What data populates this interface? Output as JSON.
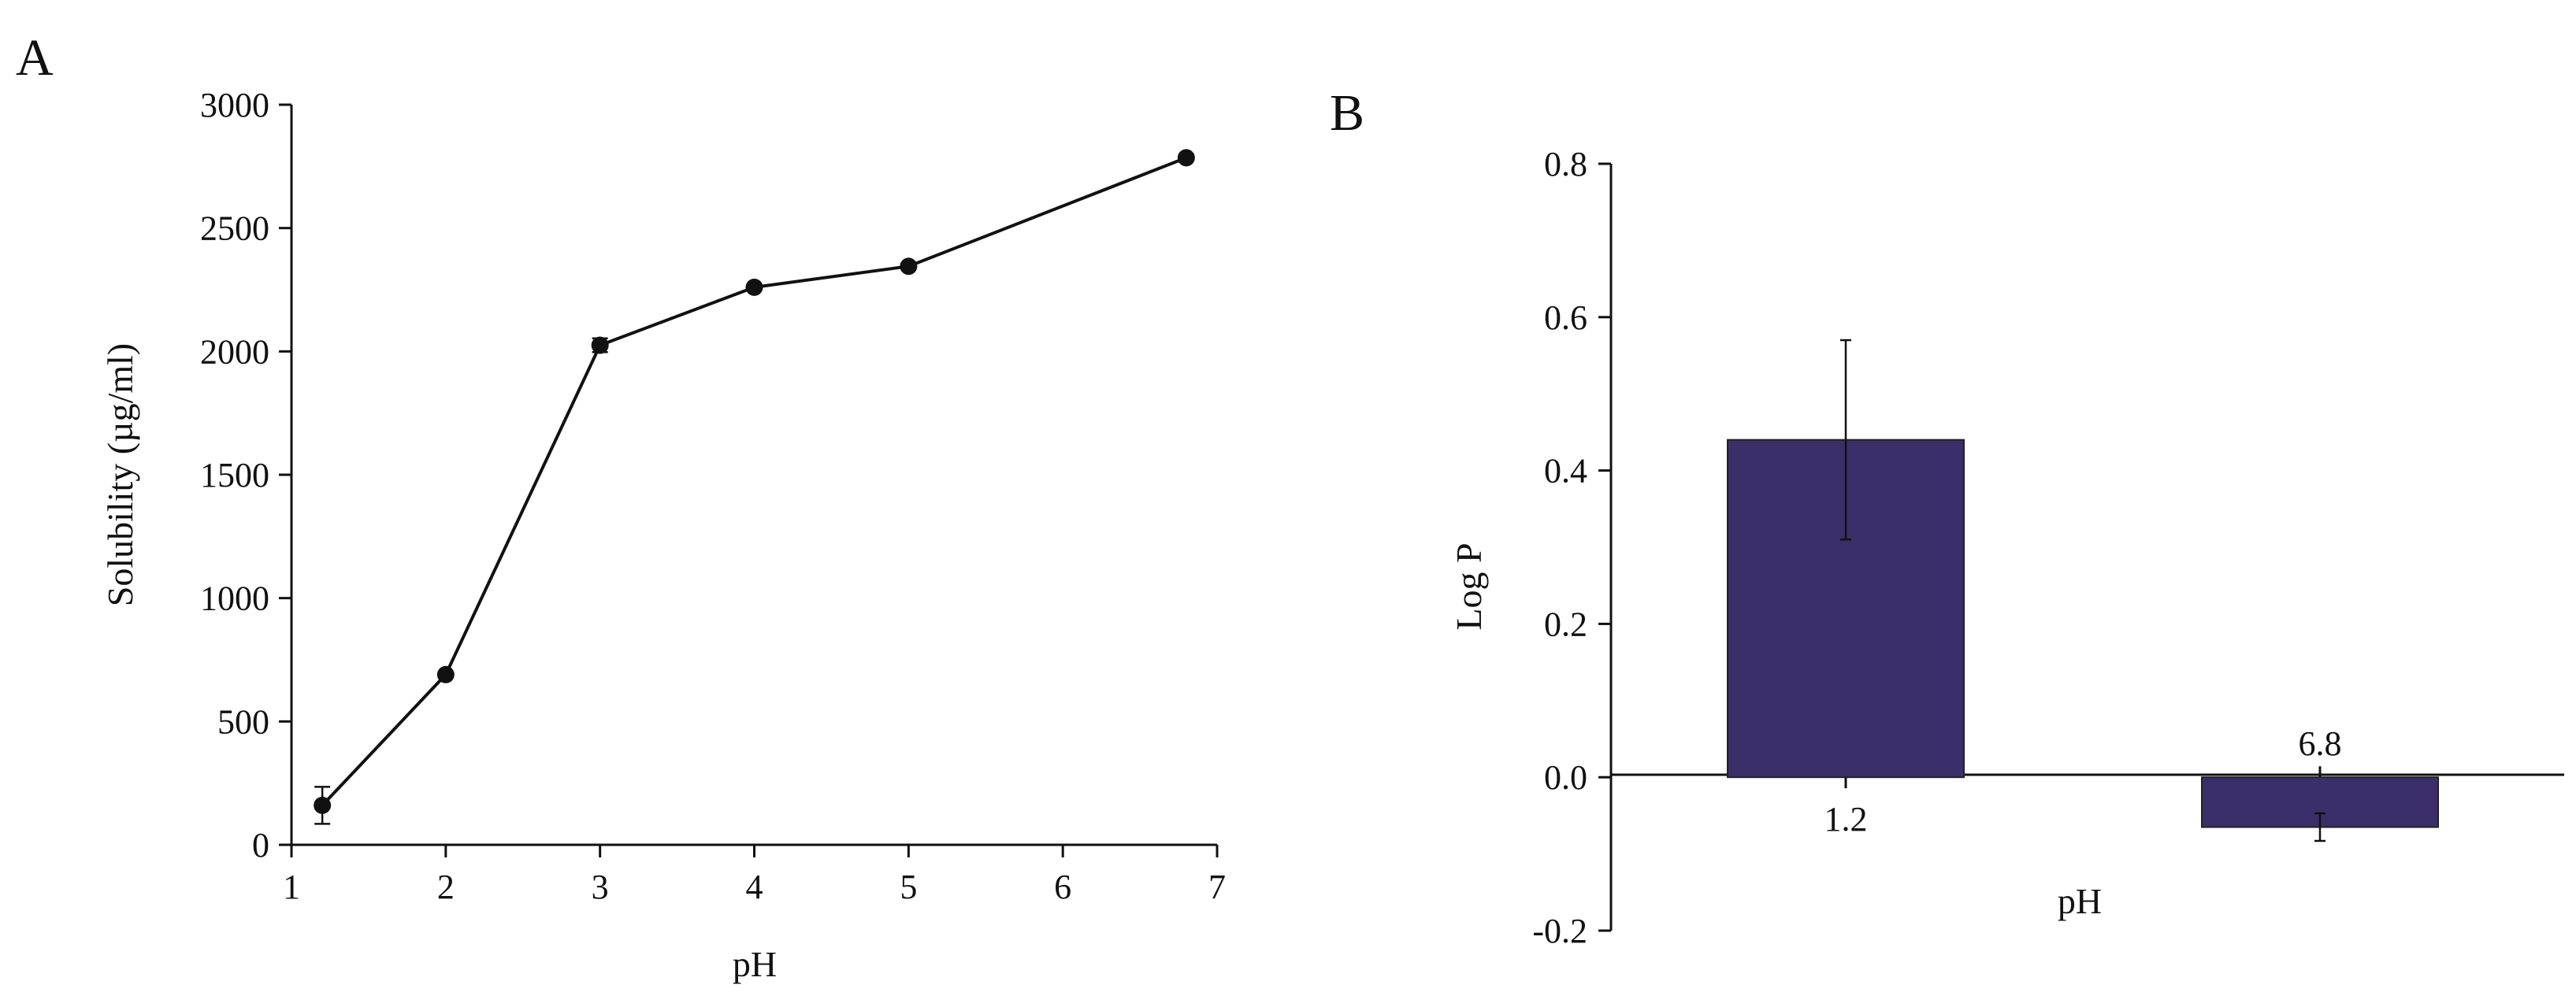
{
  "colors": {
    "bar_fill": "#3a2f68",
    "ink": "#111111"
  },
  "chart_data": [
    {
      "panel": "A",
      "type": "line",
      "xlabel": "pH",
      "ylabel": "Solubility (µg/ml)",
      "xlim": [
        1,
        7
      ],
      "ylim": [
        0,
        3000
      ],
      "xticks": [
        1,
        2,
        3,
        4,
        5,
        6,
        7
      ],
      "yticks": [
        0,
        500,
        1000,
        1500,
        2000,
        2500,
        3000
      ],
      "x": [
        1.2,
        2,
        3,
        4,
        5,
        6.8
      ],
      "y": [
        160,
        690,
        2025,
        2260,
        2345,
        2785
      ],
      "error": [
        75,
        0,
        28,
        0,
        0,
        0
      ],
      "grid": false,
      "marker": "circle"
    },
    {
      "panel": "B",
      "type": "bar",
      "xlabel": "pH",
      "ylabel": "Log P",
      "categories": [
        "1.2",
        "6.8"
      ],
      "values": [
        0.44,
        -0.065
      ],
      "error": [
        0.13,
        0.018
      ],
      "ylim": [
        -0.2,
        0.8
      ],
      "yticks": [
        "-0.2",
        "0.0",
        "0.2",
        "0.4",
        "0.6",
        "0.8"
      ],
      "grid": false
    }
  ]
}
